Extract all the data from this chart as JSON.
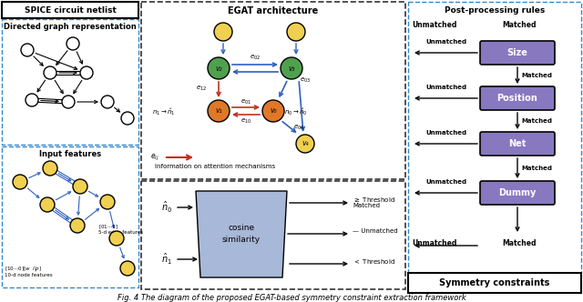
{
  "title": "Fig. 4 The diagram of the proposed EGAT-based symmetry constraint extraction framework",
  "panel1_title": "SPICE circuit netlist",
  "panel1a_title": "Directed graph representation",
  "panel1b_title": "Input features",
  "panel2_title": "EGAT architecture",
  "panel3_title": "Post-processing rules",
  "panel3_bottom": "Symmetry constraints",
  "box_color": "#8878c0",
  "node_yellow": "#f0d050",
  "node_green": "#50a050",
  "node_orange": "#e07828",
  "edge_blue": "#3060c0",
  "edge_red": "#c03020",
  "cosine_color": "#a8b8d8",
  "dashed_blue": "#3388cc",
  "dashed_dark": "#333333"
}
